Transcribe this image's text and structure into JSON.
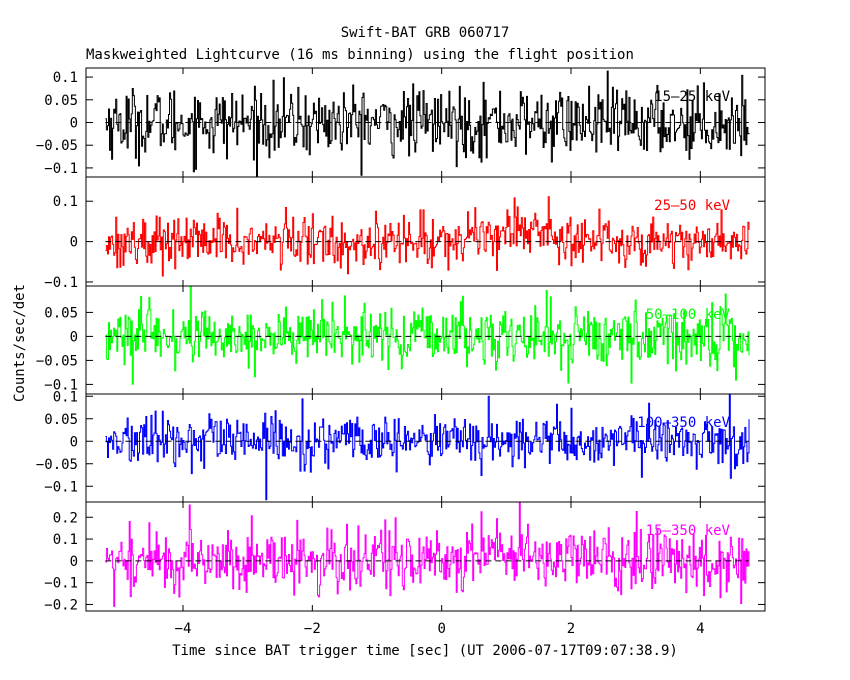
{
  "chart_data": {
    "type": "line",
    "title": "Swift-BAT GRB 060717",
    "subtitle": "Maskweighted Lightcurve (16 ms binning) using the flight position",
    "xlabel": "Time since BAT trigger time [sec] (UT 2006-07-17T09:07:38.9)",
    "ylabel": "Counts/sec/det",
    "xlim": [
      -5.5,
      5.0
    ],
    "x_ticks": [
      -4,
      -2,
      0,
      2,
      4
    ],
    "x_tick_labels": [
      "−4",
      "−2",
      "0",
      "2",
      "4"
    ],
    "data_x_range": [
      -5.2,
      4.75
    ],
    "bin_width": 0.016,
    "grid": false,
    "panels": [
      {
        "band": "15–25 keV",
        "color": "#000000",
        "ylim": [
          -0.12,
          0.12
        ],
        "yticks": [
          -0.1,
          -0.05,
          0,
          0.05,
          0.1
        ],
        "ytick_labels": [
          "−0.1",
          "−0.05",
          "0",
          "0.05",
          "0.1"
        ],
        "noise_sigma": 0.038,
        "bumps": [],
        "spikes": []
      },
      {
        "band": "25–50 keV",
        "color": "#ff0000",
        "ylim": [
          -0.11,
          0.16
        ],
        "yticks": [
          -0.1,
          0,
          0.1
        ],
        "ytick_labels": [
          "−0.1",
          "0",
          "0.1"
        ],
        "noise_sigma": 0.032,
        "bumps": [
          {
            "center": 1.2,
            "width": 0.5,
            "amp": 0.035
          }
        ],
        "spikes": []
      },
      {
        "band": "50–100 keV",
        "color": "#00ff00",
        "ylim": [
          -0.12,
          0.105
        ],
        "yticks": [
          -0.1,
          -0.05,
          0,
          0.05
        ],
        "ytick_labels": [
          "−0.1",
          "−0.05",
          "0",
          "0.05"
        ],
        "noise_sigma": 0.032,
        "bumps": [],
        "spikes": []
      },
      {
        "band": "100–350 keV",
        "color": "#0000ff",
        "ylim": [
          -0.135,
          0.105
        ],
        "yticks": [
          -0.1,
          -0.05,
          0,
          0.05,
          0.1
        ],
        "ytick_labels": [
          "−0.1",
          "−0.05",
          "0",
          "0.05",
          "0.1"
        ],
        "noise_sigma": 0.028,
        "bumps": [],
        "spikes": [
          {
            "x": -2.72,
            "y": -0.13
          },
          {
            "x": 0.72,
            "y": 0.1
          }
        ]
      },
      {
        "band": "15–350 keV",
        "color": "#ff00ff",
        "ylim": [
          -0.23,
          0.27
        ],
        "yticks": [
          -0.2,
          -0.1,
          0,
          0.1,
          0.2
        ],
        "ytick_labels": [
          "−0.2",
          "−0.1",
          "0",
          "0.1",
          "0.2"
        ],
        "noise_sigma": 0.075,
        "bumps": [
          {
            "center": 1.0,
            "width": 0.6,
            "amp": 0.04
          }
        ],
        "spikes": []
      }
    ]
  }
}
